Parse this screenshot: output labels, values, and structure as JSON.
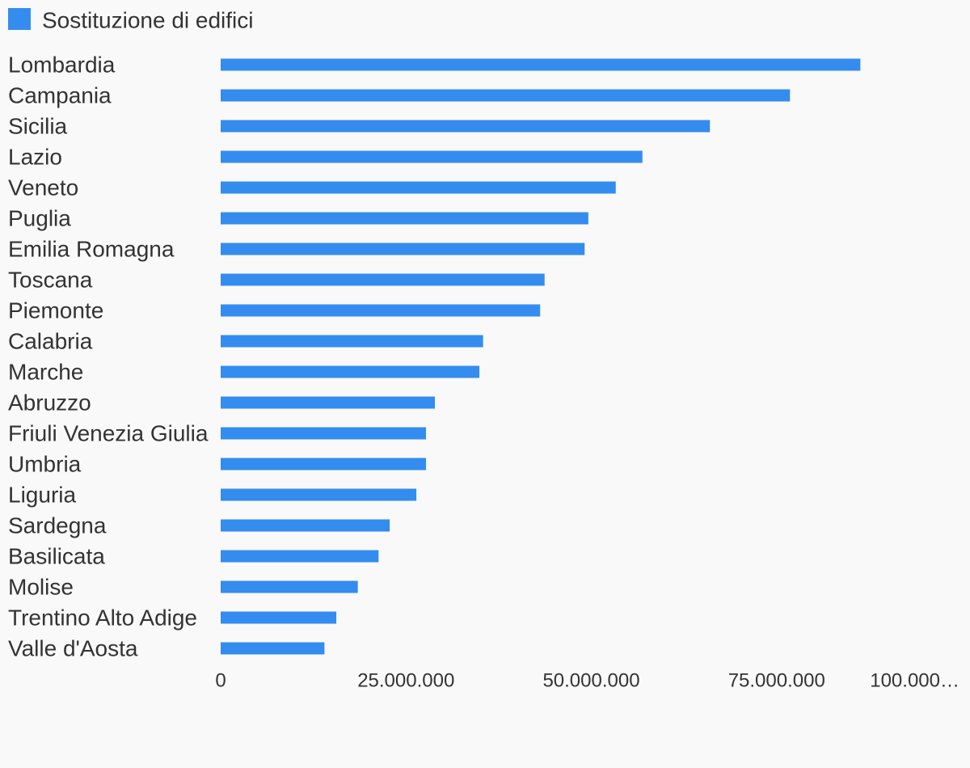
{
  "chart_data": {
    "type": "hbar",
    "legend_position": "top-left",
    "series": [
      {
        "name": "Sostituzione di edifici",
        "color": "#348cef",
        "values": [
          86300000,
          76800000,
          66000000,
          56900000,
          53300000,
          49600000,
          49100000,
          43700000,
          43100000,
          35400000,
          34900000,
          28900000,
          27700000,
          27700000,
          26400000,
          22800000,
          21300000,
          18500000,
          15600000,
          14000000
        ]
      }
    ],
    "categories": [
      "Lombardia",
      "Campania",
      "Sicilia",
      "Lazio",
      "Veneto",
      "Puglia",
      "Emilia Romagna",
      "Toscana",
      "Piemonte",
      "Calabria",
      "Marche",
      "Abruzzo",
      "Friuli Venezia Giulia",
      "Umbria",
      "Liguria",
      "Sardegna",
      "Basilicata",
      "Molise",
      "Trentino Alto Adige",
      "Valle d'Aosta"
    ],
    "xlim": [
      0,
      100000000
    ],
    "xticks": [
      0,
      {
        "value": 25000000,
        "label": "25.000.000"
      },
      {
        "value": 50000000,
        "label": "50.000.000"
      },
      {
        "value": 75000000,
        "label": "75.000.000"
      },
      {
        "value": 100000000,
        "label": "100.000…"
      }
    ]
  }
}
